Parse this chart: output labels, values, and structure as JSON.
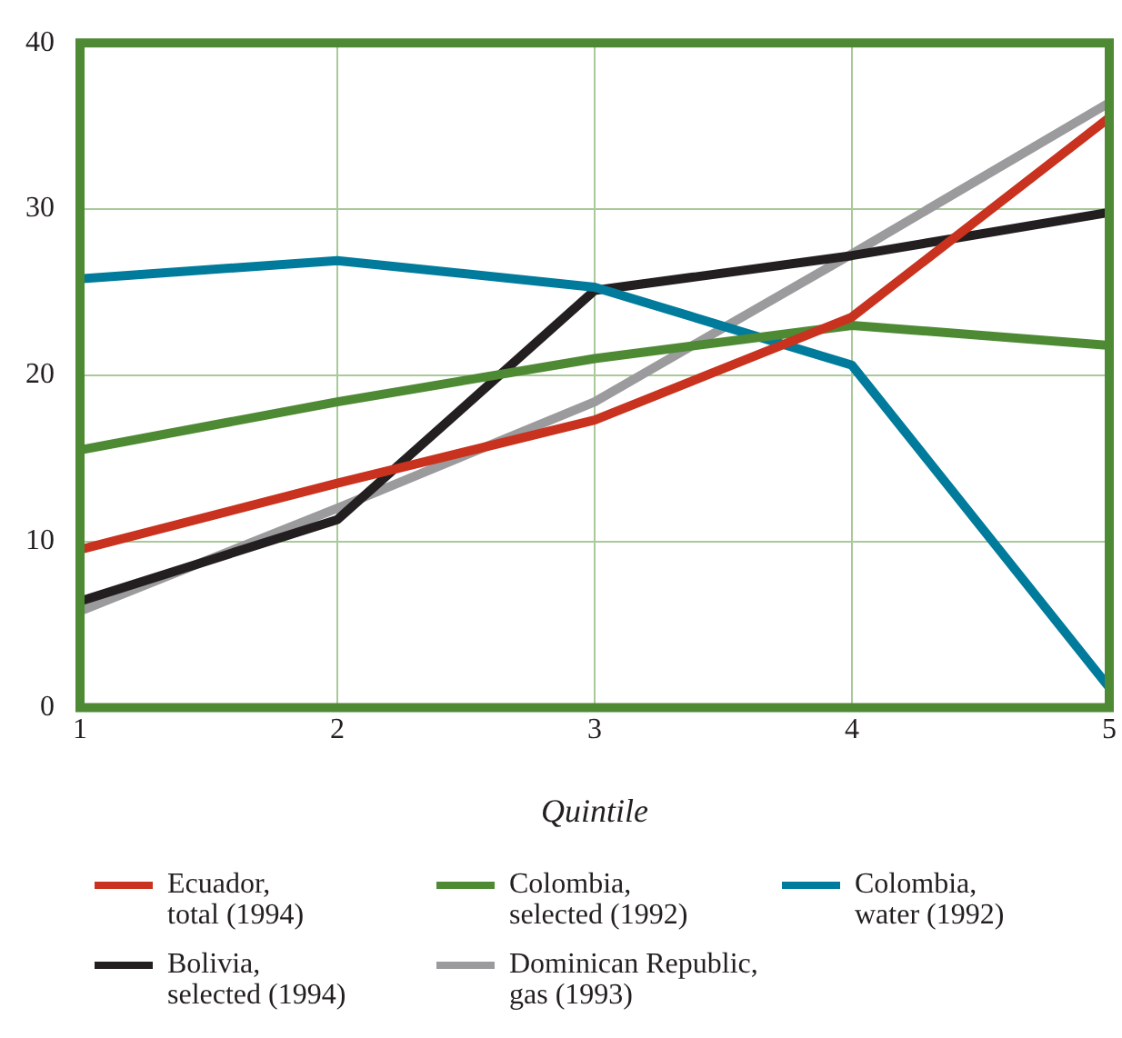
{
  "chart_data": {
    "type": "line",
    "xlabel": "Quintile",
    "x": [
      1,
      2,
      3,
      4,
      5
    ],
    "xlim": [
      1,
      5
    ],
    "xticks": [
      1,
      2,
      3,
      4,
      5
    ],
    "ylim": [
      0,
      40
    ],
    "yticks": [
      0,
      10,
      20,
      30,
      40
    ],
    "grid": true,
    "legend": "bottom",
    "marker": "none",
    "line_style": "solid",
    "series": [
      {
        "name": "Ecuador, total (1994)",
        "color": "#c8321e",
        "values": [
          9.5,
          13.5,
          17.3,
          23.5,
          35.5
        ]
      },
      {
        "name": "Colombia, selected (1992)",
        "color": "#4e8a34",
        "values": [
          15.5,
          18.4,
          21,
          23,
          21.8
        ]
      },
      {
        "name": "Colombia, water (1992)",
        "color": "#007b9c",
        "values": [
          25.8,
          26.9,
          25.3,
          20.6,
          1.2
        ]
      },
      {
        "name": "Bolivia, selected (1994)",
        "color": "#231f20",
        "values": [
          6.4,
          11.3,
          25.1,
          27.2,
          29.8
        ]
      },
      {
        "name": "Dominican Republic, gas (1993)",
        "color": "#9b9b9d",
        "values": [
          5.8,
          12,
          18.4,
          27.3,
          36.4
        ]
      }
    ]
  }
}
